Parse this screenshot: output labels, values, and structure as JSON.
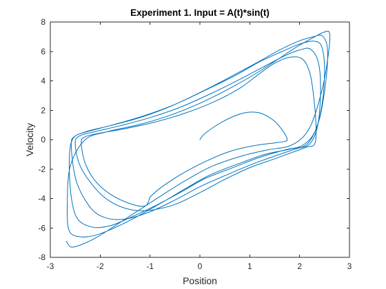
{
  "chart_data": {
    "type": "line",
    "title": "Experiment 1. Input = A(t)*sin(t)",
    "xlabel": "Position",
    "ylabel": "Velocity",
    "xlim": [
      -3,
      3
    ],
    "ylim": [
      -8,
      8
    ],
    "xticks": [
      -3,
      -2,
      -1,
      0,
      1,
      2,
      3
    ],
    "yticks": [
      -8,
      -6,
      -4,
      -2,
      0,
      2,
      4,
      6,
      8
    ],
    "grid": false,
    "legend": "none",
    "line_color": "#0072BD",
    "series": [
      {
        "x": [
          0,
          0.05,
          0.15,
          0.3,
          0.5,
          0.7,
          0.9,
          1.05,
          1.2,
          1.35,
          1.5,
          1.62,
          1.72,
          1.75,
          1.7,
          1.5,
          1.1,
          0.6,
          0.1,
          -0.4,
          -0.8,
          -1.0
        ],
        "y": [
          0,
          0.25,
          0.55,
          0.9,
          1.3,
          1.62,
          1.83,
          1.88,
          1.82,
          1.6,
          1.25,
          0.8,
          0.3,
          0.0,
          -0.12,
          -0.22,
          -0.4,
          -0.8,
          -1.5,
          -2.4,
          -3.3,
          -3.9
        ]
      },
      {
        "x": [
          -1.0,
          -1.1,
          -1.4,
          -1.8,
          -2.1,
          -2.3,
          -2.38,
          -2.3,
          -2.0,
          -1.5,
          -0.9,
          -0.3,
          0.3,
          0.8,
          1.2,
          1.5,
          1.8,
          2.05,
          2.2,
          2.28,
          2.33,
          2.3,
          2.15,
          1.9,
          1.5,
          1.0,
          0.5,
          0.0,
          -0.5,
          -1.0,
          -1.4,
          -1.8,
          -2.1,
          -2.4,
          -2.5,
          -2.42,
          -2.1,
          -1.6,
          -1.0,
          -0.4,
          0.2,
          0.8,
          1.3,
          1.7,
          2.0,
          2.22,
          2.38,
          2.42,
          2.36,
          2.2,
          1.95,
          1.6,
          1.1,
          0.6,
          0.0,
          -0.5,
          -1.0,
          -1.5,
          -1.9,
          -2.2,
          -2.48,
          -2.58,
          -2.5,
          -2.2,
          -1.7,
          -1.1,
          -0.5,
          0.1,
          0.7,
          1.2,
          1.65,
          2.0,
          2.28,
          2.44,
          2.5,
          2.45,
          2.3,
          2.05,
          1.7,
          1.2,
          0.7,
          0.1,
          -0.4,
          -0.9,
          -1.4,
          -1.8,
          -2.15,
          -2.45,
          -2.58,
          -2.62,
          -2.55,
          -2.28,
          -1.8,
          -1.2,
          -0.6,
          0.0,
          0.6,
          1.15,
          1.6,
          1.98,
          2.28,
          2.46,
          2.56,
          2.52,
          2.38,
          2.15,
          1.8,
          1.3,
          0.8,
          0.2,
          -0.3,
          -0.8,
          -1.3,
          -1.75,
          -2.1,
          -2.4,
          -2.62,
          -2.66,
          -2.6,
          -2.3,
          -1.85,
          -1.25,
          -0.65,
          -0.05,
          0.55,
          1.1,
          1.58,
          1.96,
          2.28,
          2.48,
          2.6,
          2.58,
          2.45,
          2.2,
          1.85,
          1.35,
          0.85,
          0.25,
          -0.25,
          -0.75,
          -1.25,
          -1.7,
          -2.05,
          -2.35,
          -2.58,
          -2.68
        ],
        "y": [
          -3.9,
          -4.5,
          -4.35,
          -3.7,
          -2.8,
          -1.6,
          -0.2,
          0.2,
          0.45,
          0.75,
          1.2,
          1.8,
          2.6,
          3.5,
          4.5,
          5.2,
          5.6,
          5.5,
          4.6,
          3.0,
          0.8,
          -0.3,
          -0.5,
          -0.8,
          -1.3,
          -1.9,
          -2.7,
          -3.6,
          -4.4,
          -4.8,
          -4.75,
          -4.2,
          -3.3,
          -1.8,
          -0.3,
          0.25,
          0.55,
          0.95,
          1.5,
          2.2,
          3.1,
          4.1,
          5.0,
          5.7,
          6.1,
          6.15,
          5.2,
          3.2,
          0.9,
          -0.3,
          -0.6,
          -1.0,
          -1.6,
          -2.3,
          -3.2,
          -4.1,
          -4.9,
          -5.4,
          -5.3,
          -4.6,
          -2.8,
          -0.4,
          0.25,
          0.6,
          1.05,
          1.65,
          2.4,
          3.35,
          4.35,
          5.3,
          6.0,
          6.5,
          6.7,
          6.35,
          4.8,
          2.4,
          0.5,
          -0.4,
          -0.7,
          -1.2,
          -1.85,
          -2.65,
          -3.6,
          -4.5,
          -5.3,
          -5.85,
          -5.95,
          -5.4,
          -3.9,
          -1.4,
          0.05,
          0.55,
          0.95,
          1.5,
          2.25,
          3.2,
          4.25,
          5.25,
          6.1,
          6.7,
          7.0,
          7.05,
          6.1,
          3.8,
          1.2,
          -0.3,
          -0.65,
          -1.0,
          -1.6,
          -2.4,
          -3.35,
          -4.35,
          -5.3,
          -6.05,
          -6.5,
          -6.6,
          -6.2,
          -4.5,
          -1.8,
          0.0,
          0.55,
          1.0,
          1.6,
          2.4,
          3.4,
          4.45,
          5.5,
          6.35,
          6.95,
          7.3,
          7.25,
          5.9,
          3.4,
          0.8,
          -0.35,
          -0.7,
          -1.1,
          -1.8,
          -2.7,
          -3.75,
          -4.85,
          -5.85,
          -6.6,
          -7.1,
          -7.3,
          -6.9
        ]
      }
    ]
  }
}
